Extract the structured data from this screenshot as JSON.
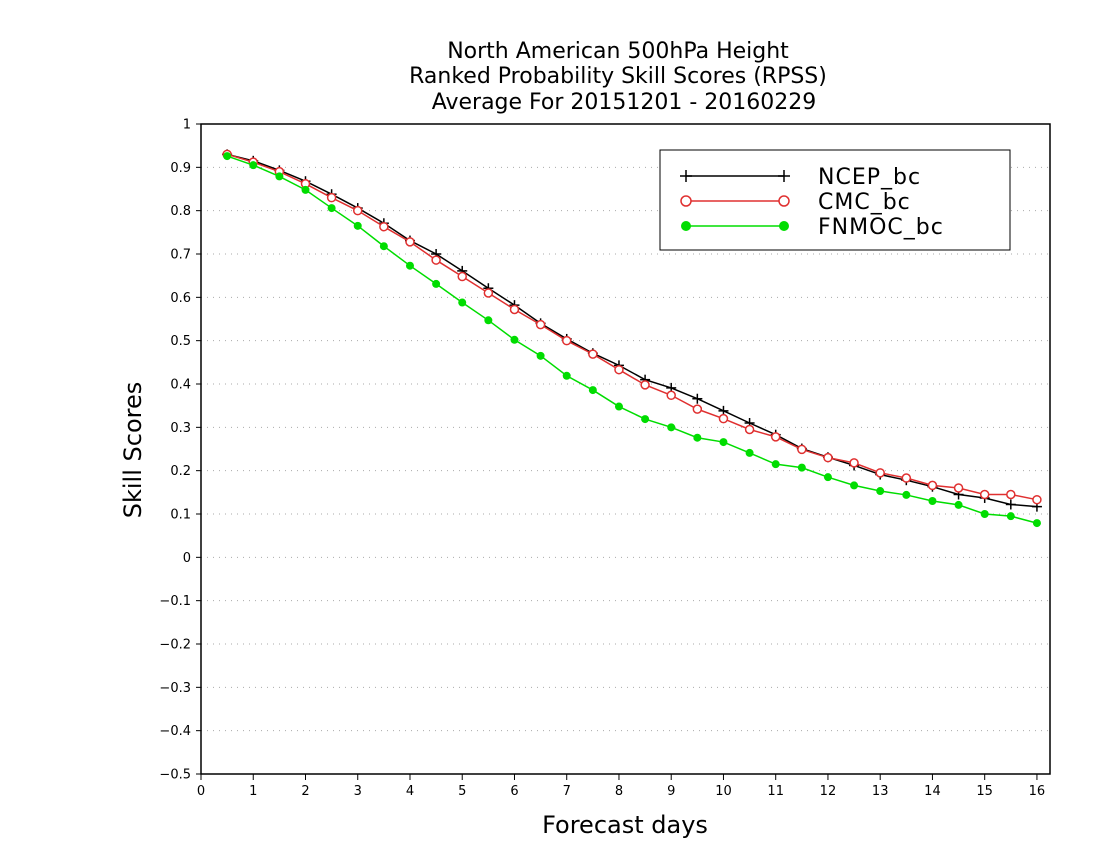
{
  "chart_data": {
    "type": "line",
    "title_lines": [
      "North American 500hPa Height",
      "Ranked Probability Skill Scores (RPSS)",
      "Average For 20151201 - 20160229"
    ],
    "xlabel": "Forecast days",
    "ylabel": "Skill Scores",
    "xlim": [
      0,
      16.25
    ],
    "ylim": [
      -0.5,
      1
    ],
    "x_ticks": [
      0,
      1,
      2,
      3,
      4,
      5,
      6,
      7,
      8,
      9,
      10,
      11,
      12,
      13,
      14,
      15,
      16
    ],
    "y_ticks": [
      -0.5,
      -0.4,
      -0.3,
      -0.2,
      -0.1,
      0,
      0.1,
      0.2,
      0.3,
      0.4,
      0.5,
      0.6,
      0.7,
      0.8,
      0.9,
      1
    ],
    "grid": "horizontal dotted",
    "legend_position": "top-right",
    "x": [
      0.5,
      1,
      1.5,
      2,
      2.5,
      3,
      3.5,
      4,
      4.5,
      5,
      5.5,
      6,
      6.5,
      7,
      7.5,
      8,
      8.5,
      9,
      9.5,
      10,
      10.5,
      11,
      11.5,
      12,
      12.5,
      13,
      13.5,
      14,
      14.5,
      15,
      15.5,
      16
    ],
    "series": [
      {
        "name": "NCEP_bc",
        "color": "#000000",
        "marker": "plus",
        "values": [
          0.93,
          0.915,
          0.893,
          0.868,
          0.838,
          0.806,
          0.771,
          0.731,
          0.7,
          0.661,
          0.621,
          0.582,
          0.54,
          0.504,
          0.471,
          0.443,
          0.41,
          0.391,
          0.366,
          0.338,
          0.31,
          0.283,
          0.251,
          0.231,
          0.212,
          0.191,
          0.178,
          0.163,
          0.145,
          0.137,
          0.122,
          0.117
        ]
      },
      {
        "name": "CMC_bc",
        "color": "#e03030",
        "marker": "open-circle",
        "values": [
          0.93,
          0.912,
          0.89,
          0.862,
          0.83,
          0.8,
          0.763,
          0.728,
          0.686,
          0.648,
          0.61,
          0.572,
          0.537,
          0.5,
          0.469,
          0.433,
          0.398,
          0.374,
          0.342,
          0.32,
          0.295,
          0.278,
          0.249,
          0.23,
          0.218,
          0.195,
          0.183,
          0.166,
          0.16,
          0.145,
          0.145,
          0.133
        ]
      },
      {
        "name": "FNMOC_bc",
        "color": "#00dd00",
        "marker": "filled-circle",
        "values": [
          0.926,
          0.905,
          0.879,
          0.848,
          0.806,
          0.765,
          0.718,
          0.673,
          0.631,
          0.588,
          0.547,
          0.502,
          0.465,
          0.419,
          0.386,
          0.348,
          0.319,
          0.3,
          0.276,
          0.266,
          0.241,
          0.215,
          0.207,
          0.185,
          0.166,
          0.153,
          0.144,
          0.13,
          0.121,
          0.1,
          0.095,
          0.079
        ]
      }
    ]
  }
}
